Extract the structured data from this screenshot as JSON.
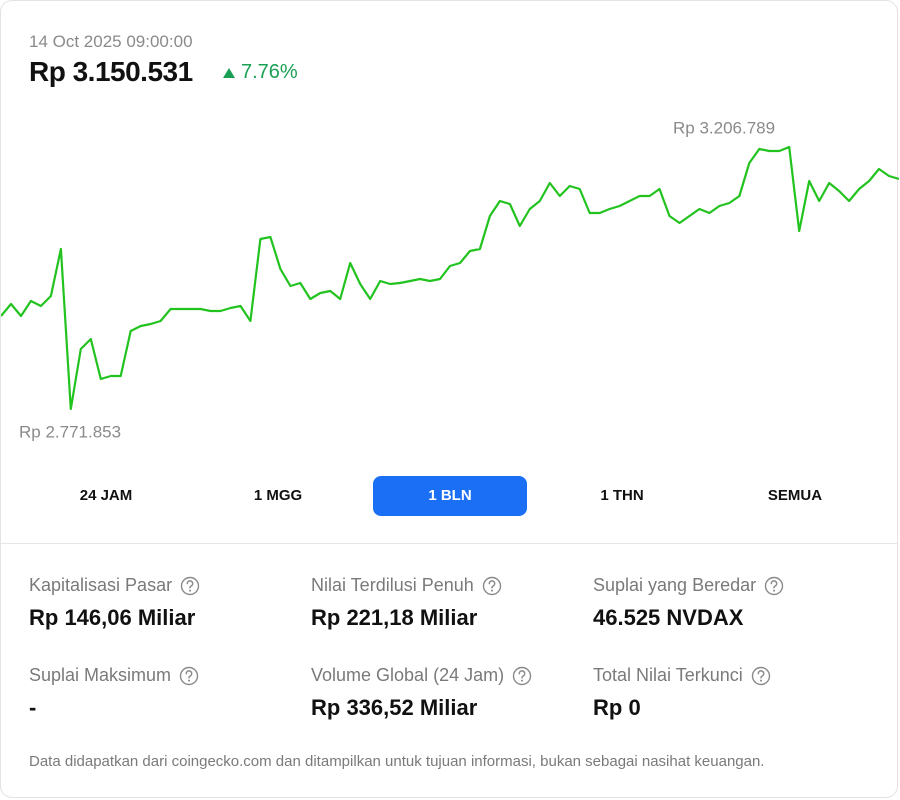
{
  "header": {
    "date": "14 Oct 2025 09:00:00",
    "price": "Rp 3.150.531",
    "change": "7.76%"
  },
  "chart_data": {
    "type": "line",
    "color": "#22c31f",
    "max_label": "Rp 3.206.789",
    "min_label": "Rp 2.771.853",
    "ylim": [
      2771853,
      3206789
    ],
    "values": [
      2926233,
      2946153,
      2926233,
      2951133,
      2942833,
      2959433,
      3037453,
      2771853,
      2871453,
      2888053,
      2821653,
      2826633,
      2826633,
      2901333,
      2909633,
      2912953,
      2917933,
      2937853,
      2937853,
      2937853,
      2937853,
      2934533,
      2934533,
      2939513,
      2942833,
      2917933,
      3054053,
      3057373,
      3004253,
      2976033,
      2981013,
      2954453,
      2964413,
      2967733,
      2954453,
      3014213,
      2979353,
      2954453,
      2984333,
      2979353,
      2981013,
      2984333,
      2987653,
      2984333,
      2987653,
      3009233,
      3014213,
      3034133,
      3037453,
      3092233,
      3117133,
      3112153,
      3075633,
      3103853,
      3117133,
      3147013,
      3125433,
      3142033,
      3137053,
      3097213,
      3097213,
      3103853,
      3108833,
      3117133,
      3125433,
      3125433,
      3137053,
      3092233,
      3080613,
      3092233,
      3103853,
      3097213,
      3108833,
      3113813,
      3125433,
      3180213,
      3203453,
      3200133,
      3200133,
      3206789,
      3067333,
      3150333,
      3117133,
      3147013,
      3133733,
      3117133,
      3137053,
      3150333,
      3170253,
      3158633,
      3153653
    ]
  },
  "tabs": {
    "items": [
      "24 JAM",
      "1 MGG",
      "1 BLN",
      "1 THN",
      "SEMUA"
    ],
    "active": 2
  },
  "stats": [
    {
      "label": "Kapitalisasi Pasar",
      "value": "Rp 146,06 Miliar"
    },
    {
      "label": "Nilai Terdilusi Penuh",
      "value": "Rp 221,18 Miliar"
    },
    {
      "label": "Suplai yang Beredar",
      "value": "46.525 NVDAX"
    },
    {
      "label": "Suplai Maksimum",
      "value": "-"
    },
    {
      "label": "Volume Global (24 Jam)",
      "value": "Rp 336,52 Miliar"
    },
    {
      "label": "Total Nilai Terkunci",
      "value": "Rp 0"
    }
  ],
  "footer": "Data didapatkan dari coingecko.com dan ditampilkan untuk tujuan informasi, bukan sebagai nasihat keuangan."
}
